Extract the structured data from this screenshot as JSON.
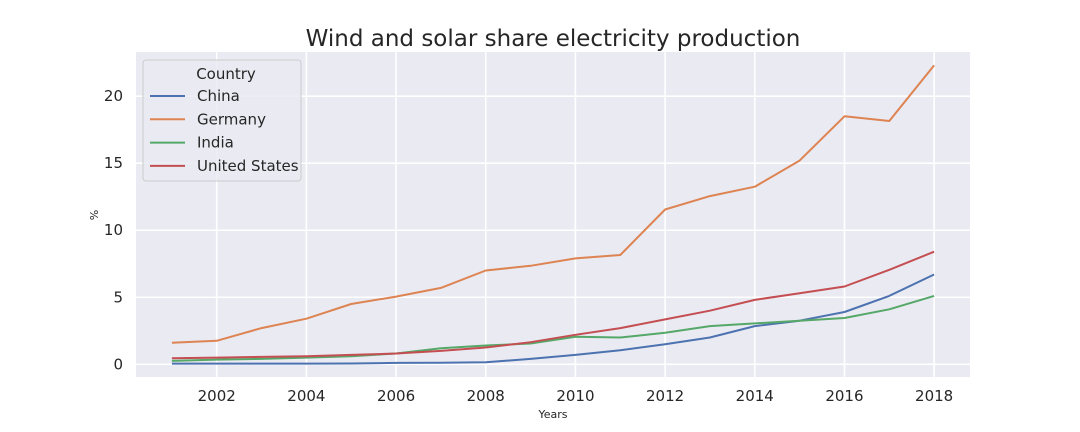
{
  "chart_data": {
    "type": "line",
    "title": "Wind and solar share electricity production",
    "xlabel": "Years",
    "ylabel": "%",
    "xlim": [
      2000.2,
      2018.8
    ],
    "ylim": [
      -0.95,
      23.3
    ],
    "x_ticks": [
      2002,
      2004,
      2006,
      2008,
      2010,
      2012,
      2014,
      2016,
      2018
    ],
    "y_ticks": [
      0,
      5,
      10,
      15,
      20
    ],
    "grid": true,
    "legend": {
      "title": "Country",
      "position": "top-left"
    },
    "x": [
      2001,
      2002,
      2003,
      2004,
      2005,
      2006,
      2007,
      2008,
      2009,
      2010,
      2011,
      2012,
      2013,
      2014,
      2015,
      2016,
      2017,
      2018
    ],
    "series": [
      {
        "name": "China",
        "color": "#4c72b0",
        "values": [
          0.05,
          0.05,
          0.05,
          0.05,
          0.06,
          0.1,
          0.12,
          0.15,
          0.4,
          0.7,
          1.05,
          1.5,
          2.0,
          2.85,
          3.25,
          3.9,
          5.1,
          6.7
        ]
      },
      {
        "name": "Germany",
        "color": "#dd8452",
        "values": [
          1.6,
          1.75,
          2.7,
          3.4,
          4.5,
          5.05,
          5.7,
          7.0,
          7.35,
          7.9,
          8.15,
          11.55,
          12.55,
          13.25,
          15.2,
          18.5,
          18.15,
          22.3
        ]
      },
      {
        "name": "India",
        "color": "#55a868",
        "values": [
          0.25,
          0.35,
          0.4,
          0.5,
          0.6,
          0.8,
          1.2,
          1.4,
          1.55,
          2.05,
          2.0,
          2.35,
          2.85,
          3.05,
          3.25,
          3.45,
          4.1,
          5.1
        ]
      },
      {
        "name": "United States",
        "color": "#c44e52",
        "values": [
          0.45,
          0.5,
          0.55,
          0.6,
          0.7,
          0.8,
          1.0,
          1.25,
          1.65,
          2.2,
          2.7,
          3.35,
          4.0,
          4.8,
          5.3,
          5.8,
          7.05,
          8.4
        ]
      }
    ]
  }
}
